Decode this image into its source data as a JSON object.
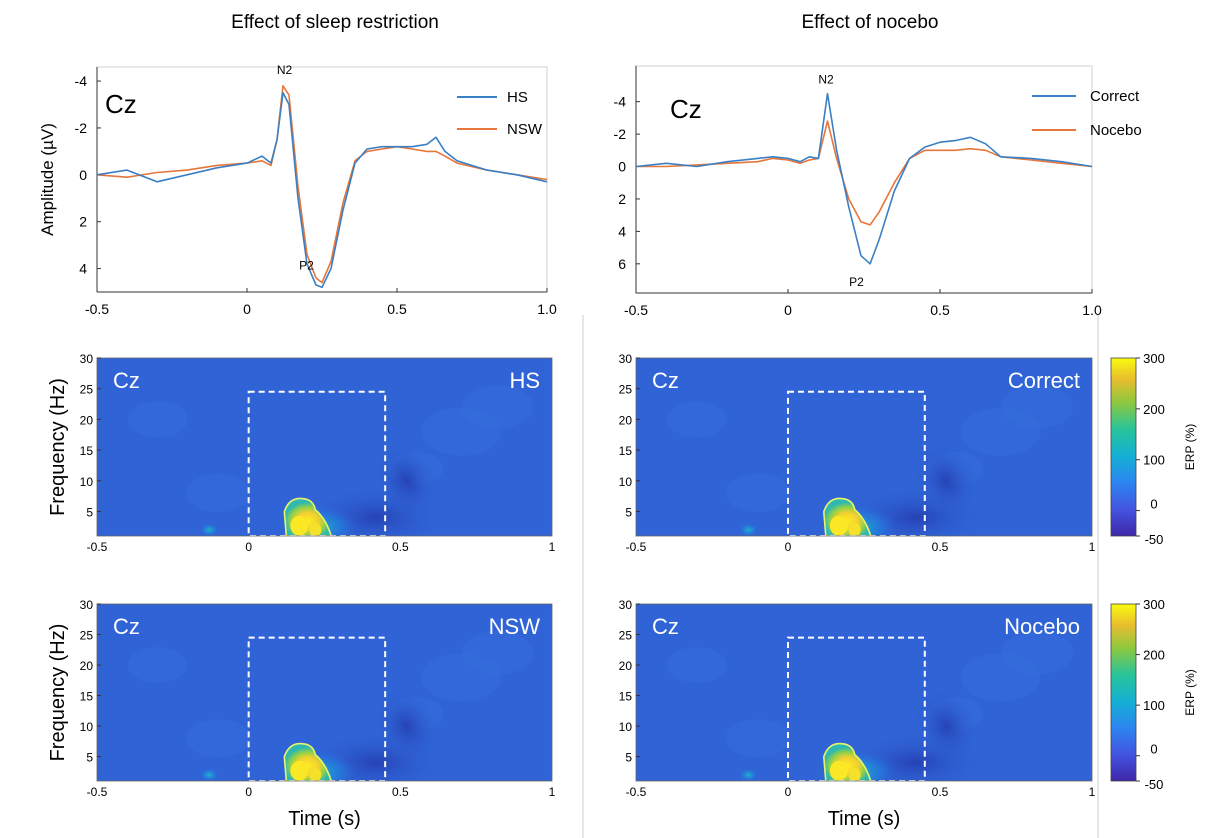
{
  "figure_titles": {
    "left": "Effect of sleep restriction",
    "right": "Effect of nocebo"
  },
  "colors": {
    "series_blue": "#3b7fc4",
    "series_orange": "#e6763a",
    "tf_background": "#2f63d6",
    "contour": "#e8f56a",
    "dashed_box": "#ffffff"
  },
  "chart_data": [
    {
      "id": "erp-sleep",
      "type": "line",
      "channel_label": "Cz",
      "ylabel": "Amplitude (µV)",
      "xlabel": "",
      "xlim": [
        -0.5,
        1.0
      ],
      "ylim": [
        5.0,
        -4.6
      ],
      "y_inverted": true,
      "x_ticks": [
        "-0.5",
        "0",
        "0.5",
        "1.0"
      ],
      "y_ticks": [
        "-4",
        "-2",
        "0",
        "2",
        "4"
      ],
      "peak_labels": [
        "N2",
        "P2"
      ],
      "legend_position": "top-right",
      "series": [
        {
          "name": "HS",
          "color": "#3b7fc4",
          "x": [
            -0.5,
            -0.4,
            -0.3,
            -0.2,
            -0.1,
            0.0,
            0.05,
            0.08,
            0.1,
            0.12,
            0.14,
            0.17,
            0.2,
            0.23,
            0.25,
            0.28,
            0.32,
            0.36,
            0.4,
            0.45,
            0.5,
            0.55,
            0.6,
            0.63,
            0.66,
            0.7,
            0.8,
            0.9,
            1.0
          ],
          "values": [
            0.0,
            -0.2,
            0.3,
            0.0,
            -0.3,
            -0.5,
            -0.8,
            -0.5,
            -1.5,
            -3.5,
            -3.0,
            1.0,
            3.8,
            4.7,
            4.8,
            4.0,
            1.5,
            -0.5,
            -1.1,
            -1.2,
            -1.2,
            -1.2,
            -1.3,
            -1.6,
            -1.0,
            -0.6,
            -0.2,
            0.0,
            0.3
          ]
        },
        {
          "name": "NSW",
          "color": "#e6763a",
          "x": [
            -0.5,
            -0.4,
            -0.3,
            -0.2,
            -0.1,
            0.0,
            0.05,
            0.08,
            0.1,
            0.12,
            0.14,
            0.17,
            0.2,
            0.23,
            0.25,
            0.28,
            0.32,
            0.36,
            0.4,
            0.45,
            0.5,
            0.55,
            0.6,
            0.63,
            0.66,
            0.7,
            0.8,
            0.9,
            1.0
          ],
          "values": [
            0.0,
            0.1,
            -0.1,
            -0.2,
            -0.4,
            -0.5,
            -0.6,
            -0.4,
            -1.5,
            -3.8,
            -3.4,
            0.5,
            3.4,
            4.4,
            4.6,
            3.7,
            1.2,
            -0.6,
            -1.0,
            -1.1,
            -1.2,
            -1.1,
            -1.0,
            -1.0,
            -0.8,
            -0.5,
            -0.2,
            0.0,
            0.2
          ]
        }
      ]
    },
    {
      "id": "erp-nocebo",
      "type": "line",
      "channel_label": "Cz",
      "ylabel": "",
      "xlabel": "",
      "xlim": [
        -0.5,
        1.0
      ],
      "ylim": [
        7.8,
        -6.2
      ],
      "y_inverted": true,
      "x_ticks": [
        "-0.5",
        "0",
        "0.5",
        "1.0"
      ],
      "y_ticks": [
        "-4",
        "-2",
        "0",
        "2",
        "4",
        "6"
      ],
      "peak_labels": [
        "N2",
        "P2"
      ],
      "legend_position": "top-right",
      "series": [
        {
          "name": "Correct",
          "color": "#3b7fc4",
          "x": [
            -0.5,
            -0.4,
            -0.3,
            -0.2,
            -0.1,
            -0.05,
            0.0,
            0.04,
            0.07,
            0.1,
            0.13,
            0.16,
            0.2,
            0.24,
            0.27,
            0.3,
            0.35,
            0.4,
            0.45,
            0.5,
            0.55,
            0.6,
            0.65,
            0.7,
            0.8,
            0.9,
            1.0
          ],
          "values": [
            0.0,
            -0.2,
            0.0,
            -0.3,
            -0.5,
            -0.6,
            -0.5,
            -0.3,
            -0.6,
            -0.5,
            -4.5,
            -1.0,
            2.5,
            5.5,
            6.0,
            4.5,
            1.5,
            -0.5,
            -1.2,
            -1.5,
            -1.6,
            -1.8,
            -1.4,
            -0.6,
            -0.5,
            -0.3,
            0.0
          ]
        },
        {
          "name": "Nocebo",
          "color": "#e6763a",
          "x": [
            -0.5,
            -0.4,
            -0.3,
            -0.2,
            -0.1,
            -0.05,
            0.0,
            0.04,
            0.07,
            0.1,
            0.13,
            0.16,
            0.2,
            0.24,
            0.27,
            0.3,
            0.35,
            0.4,
            0.45,
            0.5,
            0.55,
            0.6,
            0.65,
            0.7,
            0.8,
            0.9,
            1.0
          ],
          "values": [
            0.0,
            0.0,
            -0.1,
            -0.2,
            -0.3,
            -0.5,
            -0.4,
            -0.2,
            -0.4,
            -0.5,
            -2.8,
            -0.5,
            2.0,
            3.4,
            3.6,
            2.8,
            1.0,
            -0.5,
            -1.0,
            -1.0,
            -1.0,
            -1.1,
            -1.0,
            -0.6,
            -0.4,
            -0.2,
            0.0
          ]
        }
      ]
    },
    {
      "id": "tf-hs",
      "type": "heatmap",
      "channel_label": "Cz",
      "condition_label": "HS",
      "ylabel": "Frequency (Hz)",
      "xlabel": "",
      "xlim": [
        -0.5,
        1.0
      ],
      "ylim": [
        1,
        30
      ],
      "x_ticks": [
        "-0.5",
        "0",
        "0.5",
        "1"
      ],
      "y_ticks": [
        "5",
        "10",
        "15",
        "20",
        "25",
        "30"
      ],
      "window": {
        "t_start": 0.0,
        "t_end": 0.45,
        "f_low": 1,
        "f_high": 24.5
      },
      "blob_peak": {
        "time": 0.2,
        "freq": 3,
        "value": 300
      }
    },
    {
      "id": "tf-correct",
      "type": "heatmap",
      "channel_label": "Cz",
      "condition_label": "Correct",
      "ylabel": "",
      "xlabel": "",
      "xlim": [
        -0.5,
        1.0
      ],
      "ylim": [
        1,
        30
      ],
      "x_ticks": [
        "-0.5",
        "0",
        "0.5",
        "1"
      ],
      "y_ticks": [
        "5",
        "10",
        "15",
        "20",
        "25",
        "30"
      ],
      "window": {
        "t_start": 0.0,
        "t_end": 0.45,
        "f_low": 1,
        "f_high": 24.5
      },
      "blob_peak": {
        "time": 0.2,
        "freq": 3,
        "value": 300
      },
      "colorbar": {
        "label": "ERP (%)",
        "ticks": [
          "300",
          "200",
          "100",
          "0",
          "-50"
        ],
        "range": [
          -50,
          300
        ]
      }
    },
    {
      "id": "tf-nsw",
      "type": "heatmap",
      "channel_label": "Cz",
      "condition_label": "NSW",
      "ylabel": "Frequency (Hz)",
      "xlabel": "Time (s)",
      "xlim": [
        -0.5,
        1.0
      ],
      "ylim": [
        1,
        30
      ],
      "x_ticks": [
        "-0.5",
        "0",
        "0.5",
        "1"
      ],
      "y_ticks": [
        "5",
        "10",
        "15",
        "20",
        "25",
        "30"
      ],
      "window": {
        "t_start": 0.0,
        "t_end": 0.45,
        "f_low": 1,
        "f_high": 24.5
      },
      "blob_peak": {
        "time": 0.2,
        "freq": 3,
        "value": 300
      }
    },
    {
      "id": "tf-nocebo",
      "type": "heatmap",
      "channel_label": "Cz",
      "condition_label": "Nocebo",
      "ylabel": "",
      "xlabel": "Time (s)",
      "xlim": [
        -0.5,
        1.0
      ],
      "ylim": [
        1,
        30
      ],
      "x_ticks": [
        "-0.5",
        "0",
        "0.5",
        "1"
      ],
      "y_ticks": [
        "5",
        "10",
        "15",
        "20",
        "25",
        "30"
      ],
      "window": {
        "t_start": 0.0,
        "t_end": 0.45,
        "f_low": 1,
        "f_high": 24.5
      },
      "blob_peak": {
        "time": 0.2,
        "freq": 3,
        "value": 300
      },
      "colorbar": {
        "label": "ERP (%)",
        "ticks": [
          "300",
          "200",
          "100",
          "0",
          "-50"
        ],
        "range": [
          -50,
          300
        ]
      }
    }
  ]
}
